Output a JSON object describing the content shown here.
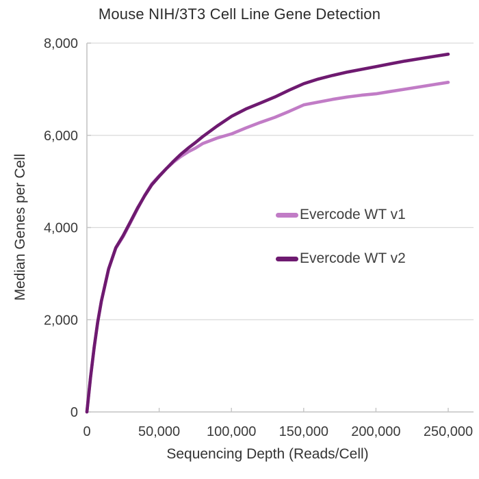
{
  "title": "Mouse NIH/3T3 Cell Line Gene Detection",
  "chart_data": {
    "type": "line",
    "title": "Mouse NIH/3T3 Cell Line Gene Detection",
    "xlabel": "Sequencing Depth (Reads/Cell)",
    "ylabel": "Median Genes per Cell",
    "xlim": [
      0,
      250000
    ],
    "ylim": [
      0,
      8000
    ],
    "grid": "horizontal-only",
    "legend_position": "inside-right",
    "axis_color": "#c4c4c4",
    "gridline_color": "#d9d9d9",
    "xticks": {
      "values": [
        0,
        50000,
        100000,
        150000,
        200000,
        250000
      ],
      "labels": [
        "0",
        "50,000",
        "100,000",
        "150,000",
        "200,000",
        "250,000"
      ]
    },
    "yticks": {
      "values": [
        0,
        2000,
        4000,
        6000,
        8000
      ],
      "labels": [
        "0",
        "2,000",
        "4,000",
        "6,000",
        "8,000"
      ]
    },
    "x": [
      0,
      2500,
      5000,
      7500,
      10000,
      15000,
      20000,
      25000,
      30000,
      35000,
      40000,
      45000,
      50000,
      55000,
      60000,
      65000,
      70000,
      75000,
      80000,
      90000,
      100000,
      110000,
      120000,
      130000,
      140000,
      150000,
      160000,
      170000,
      180000,
      190000,
      200000,
      210000,
      220000,
      230000,
      240000,
      250000
    ],
    "series": [
      {
        "id": "v1",
        "name": "Evercode WT v1",
        "color": "#c17cc6",
        "values": [
          0,
          750,
          1400,
          1950,
          2400,
          3100,
          3550,
          3800,
          4100,
          4400,
          4700,
          4950,
          5120,
          5280,
          5420,
          5540,
          5640,
          5720,
          5820,
          5940,
          6030,
          6160,
          6280,
          6390,
          6520,
          6660,
          6720,
          6780,
          6830,
          6870,
          6900,
          6950,
          7000,
          7050,
          7100,
          7150
        ]
      },
      {
        "id": "v2",
        "name": "Evercode WT v2",
        "color": "#6e1a70",
        "values": [
          0,
          750,
          1400,
          1950,
          2400,
          3100,
          3560,
          3820,
          4120,
          4420,
          4690,
          4930,
          5110,
          5280,
          5440,
          5590,
          5720,
          5840,
          5970,
          6200,
          6410,
          6570,
          6700,
          6830,
          6980,
          7120,
          7220,
          7300,
          7370,
          7430,
          7490,
          7550,
          7610,
          7660,
          7710,
          7760
        ]
      }
    ]
  }
}
